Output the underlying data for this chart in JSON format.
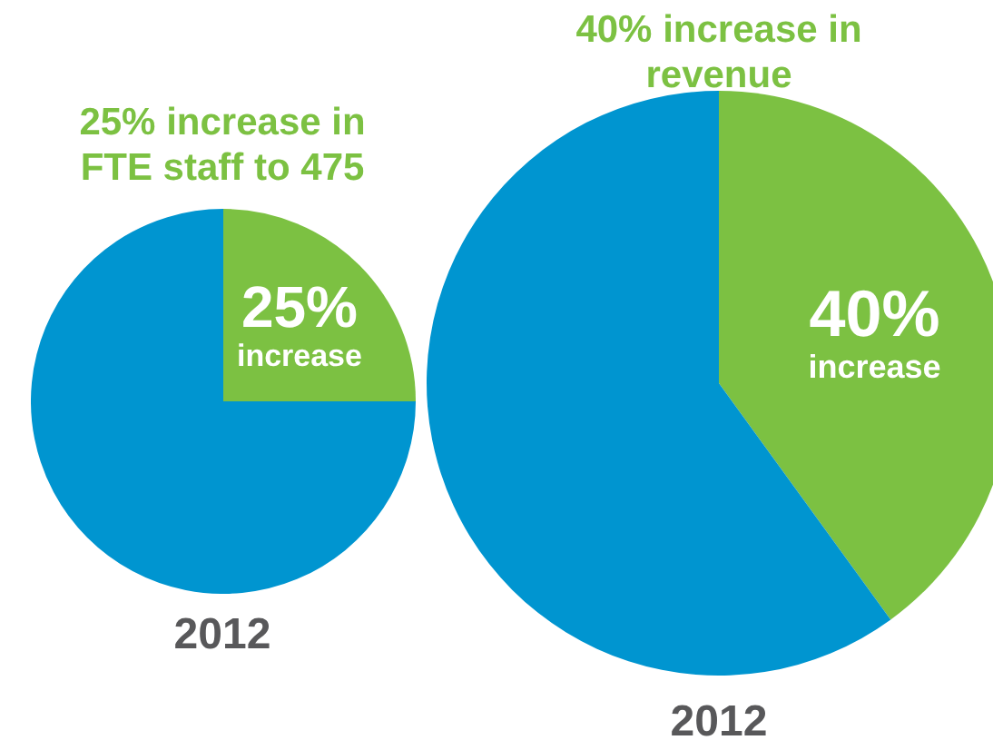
{
  "chart_data": [
    {
      "type": "pie",
      "title": "25% increase in FTE staff to 475",
      "categories": [
        "increase",
        null
      ],
      "values": [
        25,
        75
      ],
      "colors": [
        "#7cc142",
        "#0095d0"
      ],
      "value_labels": [
        "25%",
        null
      ],
      "xlabel": "2012"
    },
    {
      "type": "pie",
      "title": "40% increase in revenue",
      "categories": [
        "increase",
        null
      ],
      "values": [
        40,
        60
      ],
      "colors": [
        "#7cc142",
        "#0095d0"
      ],
      "value_labels": [
        "40%",
        null
      ],
      "xlabel": "2012"
    }
  ]
}
